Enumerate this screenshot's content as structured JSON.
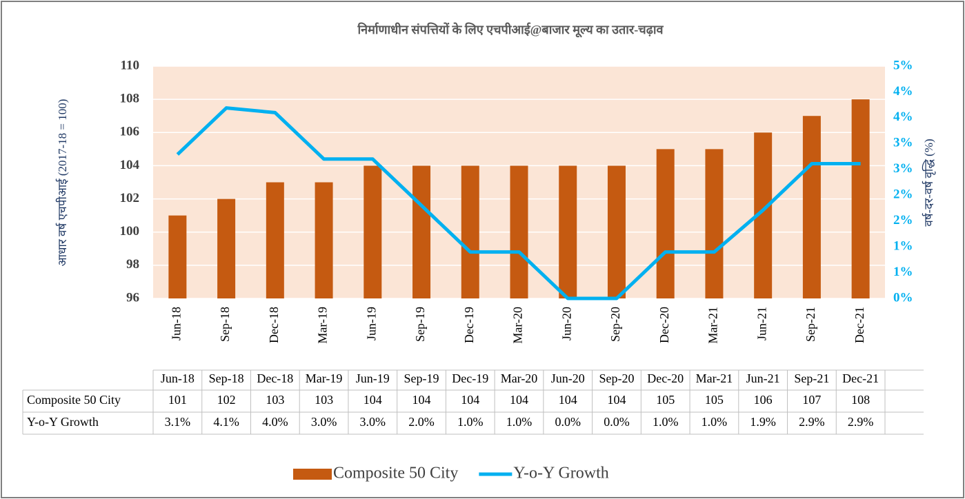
{
  "chart_data": {
    "type": "bar-line",
    "title": "निर्माणाधीन संपत्तियों के लिए एचपीआई@बाजार मूल्य का उतार-चढ़ाव",
    "y_label": "आधार वर्ष एचपीआई (2017-18 = 100)",
    "y2_label": "वर्ष-दर-वर्ष वृद्धि (%)",
    "categories": [
      "Jun-18",
      "Sep-18",
      "Dec-18",
      "Mar-19",
      "Jun-19",
      "Sep-19",
      "Dec-19",
      "Mar-20",
      "Jun-20",
      "Sep-20",
      "Dec-20",
      "Mar-21",
      "Jun-21",
      "Sep-21",
      "Dec-21"
    ],
    "series": [
      {
        "name": "Composite 50 City",
        "type": "bar",
        "color": "#c55a11",
        "values": [
          101,
          102,
          103,
          103,
          104,
          104,
          104,
          104,
          104,
          104,
          105,
          105,
          106,
          107,
          108
        ]
      },
      {
        "name": "Y-o-Y Growth",
        "type": "line",
        "axis": "y2",
        "color": "#00b0f0",
        "values": [
          3.1,
          4.1,
          4.0,
          3.0,
          3.0,
          2.0,
          1.0,
          1.0,
          0.0,
          0.0,
          1.0,
          1.0,
          1.9,
          2.9,
          2.9
        ],
        "value_labels": [
          "3.1%",
          "4.1%",
          "4.0%",
          "3.0%",
          "3.0%",
          "2.0%",
          "1.0%",
          "1.0%",
          "0.0%",
          "0.0%",
          "1.0%",
          "1.0%",
          "1.9%",
          "2.9%",
          "2.9%"
        ]
      }
    ],
    "ylim": [
      96,
      110
    ],
    "yticks": [
      96,
      98,
      100,
      102,
      104,
      106,
      108,
      110
    ],
    "y2lim": [
      0,
      5
    ],
    "y2ticks": [
      {
        "value": 0,
        "label": "0%"
      },
      {
        "value": 0.556,
        "label": "1%"
      },
      {
        "value": 1.111,
        "label": "1%"
      },
      {
        "value": 1.667,
        "label": "2%"
      },
      {
        "value": 2.222,
        "label": "2%"
      },
      {
        "value": 2.778,
        "label": "3%"
      },
      {
        "value": 3.333,
        "label": "3%"
      },
      {
        "value": 3.889,
        "label": "4%"
      },
      {
        "value": 4.444,
        "label": "4%"
      },
      {
        "value": 5,
        "label": "5%"
      }
    ],
    "grid": true,
    "plot_background": "#fbe5d6",
    "legend": "bottom"
  }
}
